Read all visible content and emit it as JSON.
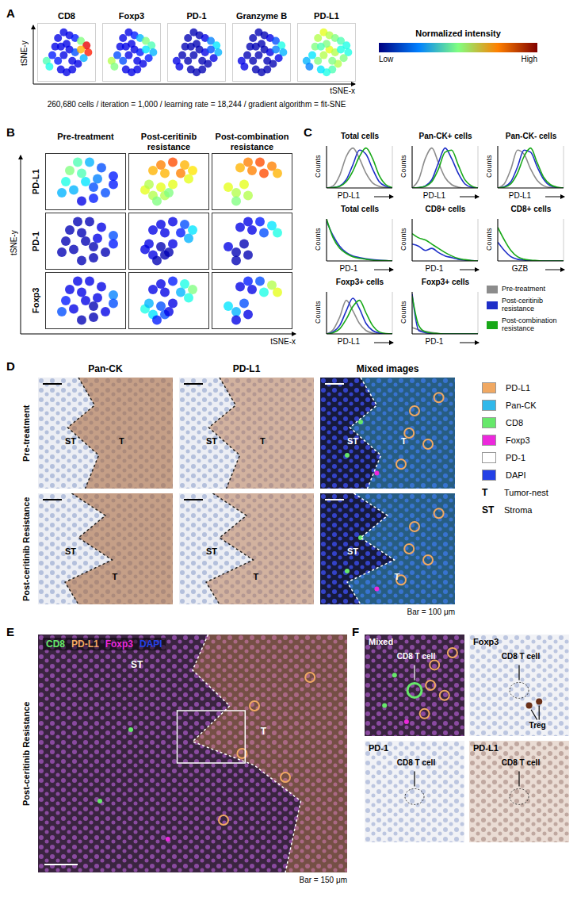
{
  "chart_data": [
    {
      "panel": "A",
      "type": "scatter",
      "xlabel": "tSNE-x",
      "ylabel": "tSNE-y",
      "xlim": [
        0,
        100
      ],
      "ylim": [
        0,
        100
      ],
      "tick_labels": false,
      "x": [
        15,
        20,
        25,
        30,
        35,
        45,
        55,
        65,
        75,
        85,
        88,
        80,
        70,
        60,
        50,
        40,
        35,
        45,
        55,
        65,
        50,
        40,
        60,
        75
      ],
      "y": [
        35,
        25,
        45,
        60,
        75,
        85,
        80,
        75,
        70,
        62,
        50,
        40,
        30,
        20,
        15,
        20,
        35,
        45,
        55,
        50,
        65,
        60,
        35,
        55
      ],
      "series": [
        {
          "name": "CD8",
          "values": [
            0.45,
            0.4,
            0.15,
            0.1,
            0.1,
            0.1,
            0.1,
            0.15,
            0.5,
            0.9,
            0.85,
            0.3,
            0.1,
            0.1,
            0.1,
            0.1,
            0.15,
            0.1,
            0.1,
            0.2,
            0.1,
            0.1,
            0.1,
            0.7
          ]
        },
        {
          "name": "Foxp3",
          "values": [
            0.55,
            0.5,
            0.2,
            0.1,
            0.1,
            0.1,
            0.15,
            0.3,
            0.5,
            0.45,
            0.3,
            0.15,
            0.1,
            0.1,
            0.1,
            0.1,
            0.2,
            0.1,
            0.1,
            0.15,
            0.1,
            0.1,
            0.1,
            0.35
          ]
        },
        {
          "name": "PD-1",
          "values": [
            0.1,
            0.1,
            0.05,
            0.05,
            0.05,
            0.05,
            0.05,
            0.1,
            0.25,
            0.35,
            0.3,
            0.1,
            0.05,
            0.05,
            0.05,
            0.05,
            0.05,
            0.05,
            0.05,
            0.1,
            0.05,
            0.05,
            0.05,
            0.2
          ]
        },
        {
          "name": "Granzyme B",
          "values": [
            0.1,
            0.1,
            0.05,
            0.05,
            0.05,
            0.05,
            0.05,
            0.1,
            0.2,
            0.4,
            0.3,
            0.1,
            0.05,
            0.05,
            0.05,
            0.05,
            0.05,
            0.05,
            0.05,
            0.1,
            0.05,
            0.05,
            0.05,
            0.25
          ]
        },
        {
          "name": "PD-L1",
          "values": [
            0.3,
            0.25,
            0.35,
            0.5,
            0.55,
            0.6,
            0.55,
            0.5,
            0.45,
            0.4,
            0.4,
            0.5,
            0.55,
            0.45,
            0.4,
            0.35,
            0.5,
            0.55,
            0.6,
            0.55,
            0.5,
            0.45,
            0.5,
            0.4
          ]
        }
      ],
      "colorbar": {
        "title": "Normalized intensity",
        "low_label": "Low",
        "high_label": "High",
        "range": [
          0,
          1
        ]
      },
      "caption": "260,680 cells / iteration = 1,000 / learning rate = 18,244 / gradient algorithm = fit-SNE"
    },
    {
      "panel": "B",
      "type": "scatter",
      "xlabel": "tSNE-x",
      "ylabel": "tSNE-y",
      "xlim": [
        0,
        100
      ],
      "ylim": [
        0,
        100
      ],
      "tick_labels": false,
      "markers": [
        "PD-L1",
        "PD-1",
        "Foxp3"
      ],
      "conditions": [
        {
          "name": "Pre-treatment",
          "x": [
            20,
            25,
            30,
            40,
            55,
            70,
            85,
            85,
            75,
            60,
            45,
            35,
            50,
            65,
            45,
            60
          ],
          "y": [
            30,
            50,
            70,
            85,
            85,
            75,
            60,
            45,
            30,
            20,
            15,
            35,
            50,
            55,
            65,
            40
          ],
          "values": {
            "PD-L1": [
              0.3,
              0.4,
              0.5,
              0.45,
              0.3,
              0.2,
              0.15,
              0.15,
              0.2,
              0.15,
              0.1,
              0.3,
              0.35,
              0.25,
              0.45,
              0.2
            ],
            "PD-1": [
              0.05,
              0.05,
              0.05,
              0.05,
              0.05,
              0.1,
              0.2,
              0.15,
              0.05,
              0.05,
              0.05,
              0.05,
              0.05,
              0.1,
              0.05,
              0.05
            ],
            "Foxp3": [
              0.2,
              0.15,
              0.1,
              0.1,
              0.1,
              0.1,
              0.25,
              0.2,
              0.1,
              0.05,
              0.05,
              0.1,
              0.1,
              0.1,
              0.1,
              0.05
            ]
          }
        },
        {
          "name": "Post-ceritinib resistance",
          "x": [
            30,
            40,
            55,
            70,
            80,
            65,
            45,
            75,
            20,
            30,
            40,
            25,
            35,
            45,
            55,
            50
          ],
          "y": [
            70,
            80,
            85,
            80,
            70,
            65,
            65,
            55,
            35,
            25,
            40,
            45,
            15,
            25,
            45,
            30
          ],
          "values": {
            "PD-L1": [
              0.7,
              0.75,
              0.8,
              0.7,
              0.65,
              0.75,
              0.7,
              0.6,
              0.6,
              0.55,
              0.6,
              0.55,
              0.5,
              0.55,
              0.6,
              0.5
            ],
            "PD-1": [
              0.1,
              0.1,
              0.1,
              0.2,
              0.35,
              0.15,
              0.1,
              0.3,
              0.1,
              0.1,
              0.05,
              0.1,
              0.05,
              0.05,
              0.1,
              0.05
            ],
            "Foxp3": [
              0.1,
              0.1,
              0.15,
              0.4,
              0.5,
              0.3,
              0.1,
              0.4,
              0.4,
              0.35,
              0.2,
              0.3,
              0.15,
              0.2,
              0.1,
              0.1
            ]
          }
        },
        {
          "name": "Post-combination resistance",
          "x": [
            35,
            45,
            60,
            75,
            82,
            65,
            50,
            20,
            30,
            40,
            30,
            45
          ],
          "y": [
            75,
            85,
            85,
            78,
            65,
            65,
            70,
            40,
            30,
            45,
            15,
            25
          ],
          "values": {
            "PD-L1": [
              0.7,
              0.75,
              0.8,
              0.75,
              0.7,
              0.8,
              0.75,
              0.6,
              0.55,
              0.6,
              0.5,
              0.55
            ],
            "PD-1": [
              0.1,
              0.1,
              0.15,
              0.35,
              0.4,
              0.2,
              0.1,
              0.1,
              0.05,
              0.05,
              0.05,
              0.05
            ],
            "Foxp3": [
              0.1,
              0.15,
              0.2,
              0.55,
              0.6,
              0.4,
              0.1,
              0.35,
              0.3,
              0.2,
              0.1,
              0.1
            ]
          }
        }
      ]
    },
    {
      "panel": "C",
      "type": "line",
      "ylabel": "Counts",
      "xlim": [
        0,
        100
      ],
      "ylim": [
        0,
        100
      ],
      "xticks": [
        20,
        40,
        60,
        80
      ],
      "grid": true,
      "tick_labels": false,
      "x": [
        0,
        10,
        20,
        30,
        40,
        50,
        60,
        70,
        80,
        90,
        100
      ],
      "legend_entries": [
        {
          "name": "Pre-treatment",
          "color": "#8c8c8c"
        },
        {
          "name": "Post-ceritinib resistance",
          "color": "#1f2fc8"
        },
        {
          "name": "Post-combination resistance",
          "color": "#18a818"
        }
      ],
      "subplots": [
        {
          "title": "Total cells",
          "xlabel": "PD-L1",
          "series": [
            {
              "name": "Pre-treatment",
              "values": [
                0,
                5,
                30,
                75,
                95,
                70,
                35,
                12,
                4,
                1,
                0
              ]
            },
            {
              "name": "Post-ceritinib resistance",
              "values": [
                0,
                1,
                5,
                20,
                55,
                90,
                80,
                45,
                15,
                4,
                0
              ]
            },
            {
              "name": "Post-combination resistance",
              "values": [
                0,
                1,
                4,
                15,
                40,
                75,
                95,
                70,
                30,
                8,
                1
              ]
            }
          ]
        },
        {
          "title": "Pan-CK+ cells",
          "xlabel": "PD-L1",
          "series": [
            {
              "name": "Pre-treatment",
              "values": [
                0,
                20,
                70,
                95,
                60,
                25,
                8,
                2,
                0,
                0,
                0
              ]
            },
            {
              "name": "Post-ceritinib resistance",
              "values": [
                0,
                1,
                5,
                20,
                60,
                95,
                70,
                35,
                10,
                2,
                0
              ]
            },
            {
              "name": "Post-combination resistance",
              "values": [
                0,
                1,
                4,
                15,
                45,
                85,
                90,
                55,
                20,
                5,
                0
              ]
            }
          ]
        },
        {
          "title": "Pan-CK- cells",
          "xlabel": "PD-L1",
          "series": [
            {
              "name": "Pre-treatment",
              "values": [
                0,
                10,
                45,
                90,
                80,
                45,
                18,
                5,
                1,
                0,
                0
              ]
            },
            {
              "name": "Post-ceritinib resistance",
              "values": [
                0,
                3,
                15,
                50,
                90,
                85,
                50,
                20,
                5,
                1,
                0
              ]
            },
            {
              "name": "Post-combination resistance",
              "values": [
                0,
                2,
                10,
                35,
                75,
                95,
                60,
                25,
                8,
                2,
                0
              ]
            }
          ]
        },
        {
          "title": "Total cells",
          "xlabel": "PD-1",
          "series": [
            {
              "name": "Post-ceritinib resistance",
              "values": [
                95,
                60,
                35,
                20,
                12,
                8,
                5,
                3,
                2,
                1,
                0
              ]
            },
            {
              "name": "Post-combination resistance",
              "values": [
                100,
                55,
                30,
                18,
                10,
                6,
                4,
                2,
                1,
                1,
                0
              ]
            }
          ]
        },
        {
          "title": "CD8+ cells",
          "xlabel": "PD-1",
          "series": [
            {
              "name": "Post-ceritinib resistance",
              "values": [
                40,
                35,
                25,
                30,
                20,
                12,
                8,
                4,
                2,
                1,
                0
              ]
            },
            {
              "name": "Post-combination resistance",
              "values": [
                65,
                55,
                50,
                40,
                30,
                20,
                12,
                6,
                3,
                1,
                0
              ]
            }
          ]
        },
        {
          "title": "CD8+ cells",
          "xlabel": "GZB",
          "series": [
            {
              "name": "Post-ceritinib resistance",
              "values": [
                45,
                25,
                10,
                4,
                2,
                1,
                0,
                0,
                0,
                0,
                0
              ]
            },
            {
              "name": "Post-combination resistance",
              "values": [
                80,
                50,
                25,
                10,
                4,
                2,
                1,
                0,
                0,
                0,
                0
              ]
            }
          ]
        },
        {
          "title": "Foxp3+ cells",
          "xlabel": "PD-L1",
          "series": [
            {
              "name": "Pre-treatment",
              "values": [
                0,
                10,
                40,
                80,
                55,
                25,
                8,
                2,
                0,
                0,
                0
              ]
            },
            {
              "name": "Post-ceritinib resistance",
              "values": [
                0,
                5,
                20,
                55,
                85,
                60,
                25,
                8,
                2,
                0,
                0
              ]
            },
            {
              "name": "Post-combination resistance",
              "values": [
                0,
                3,
                12,
                35,
                65,
                80,
                50,
                20,
                5,
                1,
                0
              ]
            }
          ]
        },
        {
          "title": "Foxp3+ cells",
          "xlabel": "PD-1",
          "series": [
            {
              "name": "Pre-treatment",
              "values": [
                15,
                10,
                6,
                3,
                1,
                0,
                0,
                0,
                0,
                0,
                0
              ]
            },
            {
              "name": "Post-ceritinib resistance",
              "values": [
                95,
                8,
                3,
                1,
                0,
                0,
                0,
                0,
                0,
                0,
                0
              ]
            },
            {
              "name": "Post-combination resistance",
              "values": [
                90,
                20,
                5,
                2,
                1,
                0,
                0,
                0,
                0,
                0,
                0
              ]
            }
          ]
        }
      ]
    }
  ],
  "images": [
    {
      "panel": "D",
      "columns": [
        "Pan-CK",
        "PD-L1",
        "Mixed images"
      ],
      "rows": [
        "Pre-treatment",
        "Post-ceritinib Resistance"
      ],
      "region_labels": {
        "tumor": "T",
        "stroma": "ST"
      },
      "legend": [
        {
          "label": "PD-L1",
          "color": "#f0a862"
        },
        {
          "label": "Pan-CK",
          "color": "#30b8ea"
        },
        {
          "label": "CD8",
          "color": "#66e86a"
        },
        {
          "label": "Foxp3",
          "color": "#ec28dc"
        },
        {
          "label": "PD-1",
          "color": "#ffffff"
        },
        {
          "label": "DAPI",
          "color": "#2340e6"
        },
        {
          "symbol": "T",
          "label": "Tumor-nest"
        },
        {
          "symbol": "ST",
          "label": "Stroma"
        }
      ],
      "scale_bar": "Bar = 100 μm"
    },
    {
      "panel": "E",
      "row_label": "Post-ceritinib Resistance",
      "channels": [
        {
          "label": "CD8",
          "color": "#66e86a"
        },
        {
          "label": "PD-L1",
          "color": "#f0a862"
        },
        {
          "label": "Foxp3",
          "color": "#ec28dc"
        },
        {
          "label": "DAPI",
          "color": "#2340e6"
        }
      ],
      "region_labels": {
        "tumor": "T",
        "stroma": "ST"
      },
      "scale_bar": "Bar = 150 μm"
    },
    {
      "panel": "F",
      "tiles": [
        {
          "title": "Mixed",
          "cell_label": "CD8 T cell"
        },
        {
          "title": "Foxp3",
          "cell_label": "CD8 T cell",
          "treg_label": "Treg"
        },
        {
          "title": "PD-1",
          "cell_label": "CD8 T cell"
        },
        {
          "title": "PD-L1",
          "cell_label": "CD8 T cell"
        }
      ]
    }
  ]
}
